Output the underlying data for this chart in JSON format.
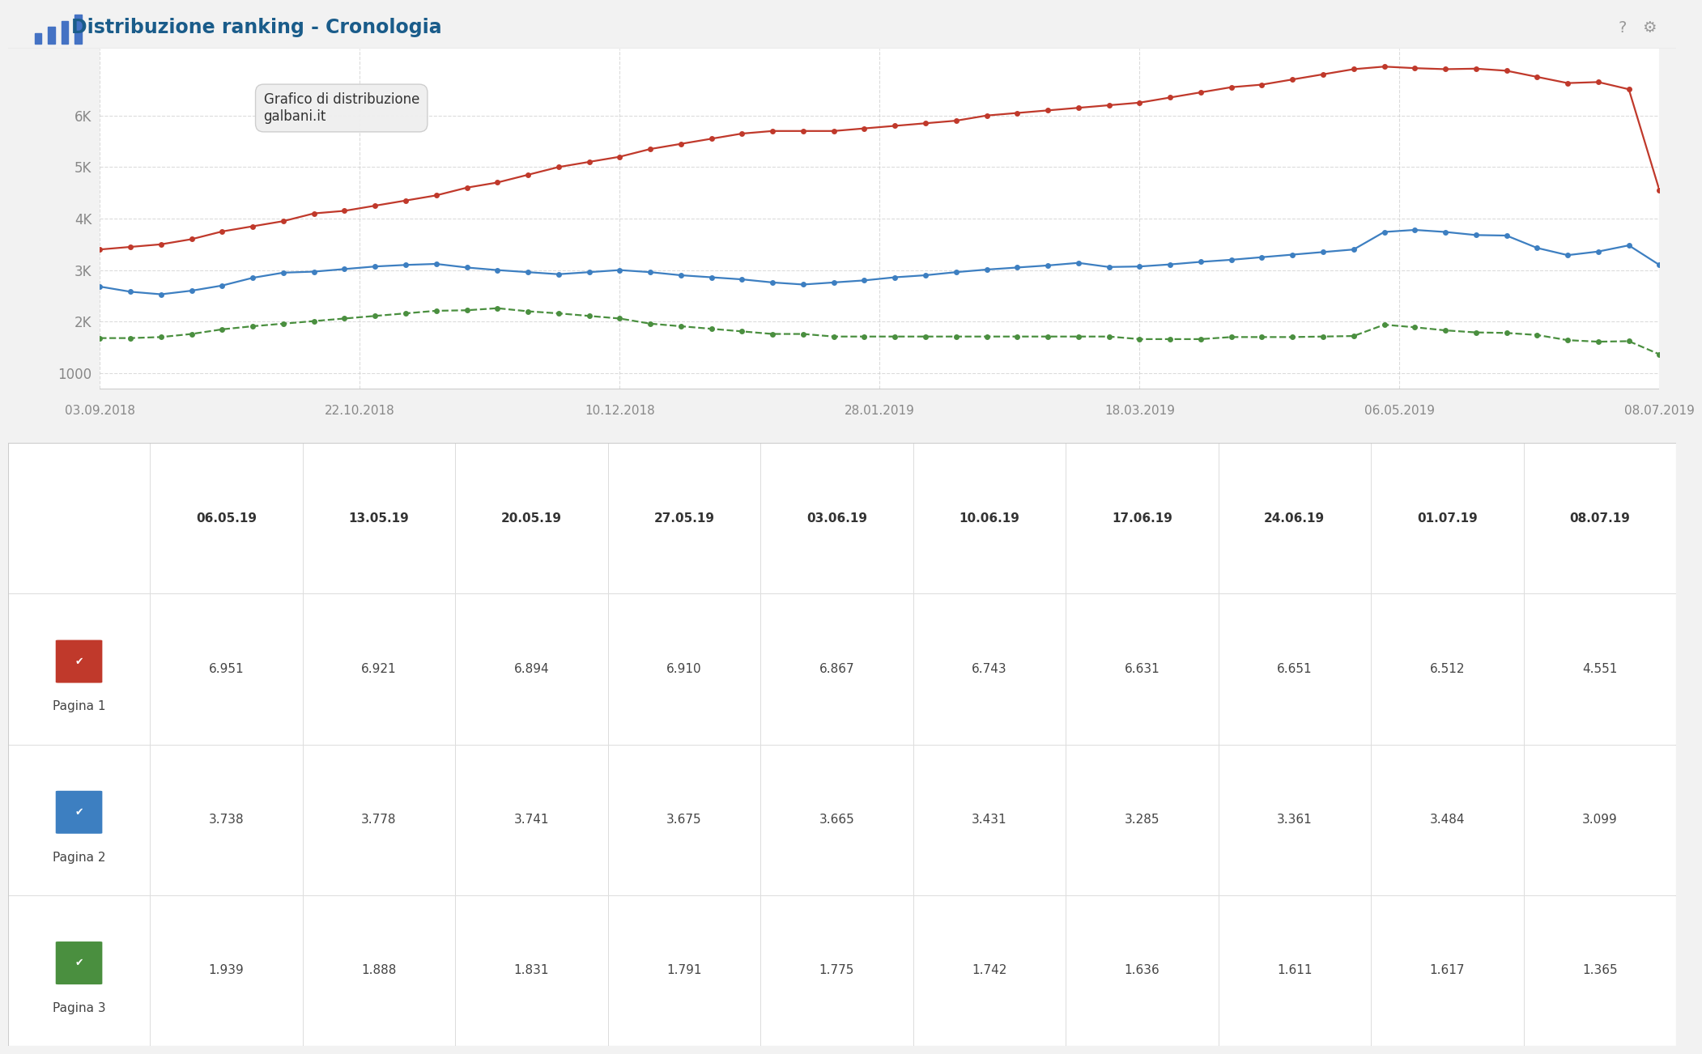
{
  "title": "Distribuzione ranking - Cronologia",
  "subtitle_line1": "Grafico di distribuzione",
  "subtitle_line2": "galbani.it",
  "x_axis_labels": [
    "03.09.2018",
    "22.10.2018",
    "10.12.2018",
    "28.01.2019",
    "18.03.2019",
    "06.05.2019",
    "08.07.2019"
  ],
  "table_col_labels": [
    "06.05.19",
    "13.05.19",
    "20.05.19",
    "27.05.19",
    "03.06.19",
    "10.06.19",
    "17.06.19",
    "24.06.19",
    "01.07.19",
    "08.07.19"
  ],
  "row_labels": [
    "Pagina 1",
    "Pagina 2",
    "Pagina 3"
  ],
  "table_data": [
    [
      6.951,
      6.921,
      6.894,
      6.91,
      6.867,
      6.743,
      6.631,
      6.651,
      6.512,
      4.551
    ],
    [
      3.738,
      3.778,
      3.741,
      3.675,
      3.665,
      3.431,
      3.285,
      3.361,
      3.484,
      3.099
    ],
    [
      1.939,
      1.888,
      1.831,
      1.791,
      1.775,
      1.742,
      1.636,
      1.611,
      1.617,
      1.365
    ]
  ],
  "pagina1_color": "#c0392b",
  "pagina2_color": "#3d7fc1",
  "pagina3_color": "#4a8f3f",
  "pagina1_data": [
    3400,
    3450,
    3500,
    3600,
    3750,
    3850,
    3950,
    4100,
    4150,
    4250,
    4350,
    4450,
    4600,
    4700,
    4850,
    5000,
    5100,
    5200,
    5350,
    5450,
    5550,
    5650,
    5700,
    5700,
    5700,
    5750,
    5800,
    5850,
    5900,
    6000,
    6050,
    6100,
    6150,
    6200,
    6250,
    6350,
    6450,
    6550,
    6600,
    6700,
    6800,
    6900,
    6950,
    6920,
    6900,
    6910,
    6870,
    6750,
    6630,
    6650,
    6510,
    4550
  ],
  "pagina2_data": [
    2680,
    2580,
    2530,
    2600,
    2700,
    2850,
    2950,
    2970,
    3020,
    3070,
    3100,
    3120,
    3050,
    3000,
    2960,
    2920,
    2960,
    3000,
    2960,
    2900,
    2860,
    2820,
    2760,
    2720,
    2760,
    2800,
    2860,
    2900,
    2960,
    3010,
    3050,
    3090,
    3140,
    3060,
    3070,
    3110,
    3160,
    3200,
    3250,
    3300,
    3350,
    3400,
    3740,
    3780,
    3740,
    3680,
    3670,
    3430,
    3290,
    3360,
    3480,
    3100
  ],
  "pagina3_data": [
    1680,
    1680,
    1700,
    1760,
    1850,
    1910,
    1960,
    2010,
    2060,
    2110,
    2160,
    2210,
    2220,
    2260,
    2200,
    2160,
    2110,
    2060,
    1960,
    1910,
    1860,
    1810,
    1760,
    1760,
    1710,
    1710,
    1710,
    1710,
    1710,
    1710,
    1710,
    1710,
    1710,
    1710,
    1660,
    1660,
    1660,
    1700,
    1700,
    1700,
    1710,
    1720,
    1940,
    1890,
    1830,
    1790,
    1780,
    1740,
    1640,
    1610,
    1620,
    1365
  ],
  "grid_color": "#cccccc",
  "yticks": [
    1000,
    2000,
    3000,
    4000,
    5000,
    6000
  ],
  "ytick_labels": [
    "1000",
    "2K",
    "3K",
    "4K",
    "5K",
    "6K"
  ],
  "ylim": [
    700,
    7300
  ]
}
